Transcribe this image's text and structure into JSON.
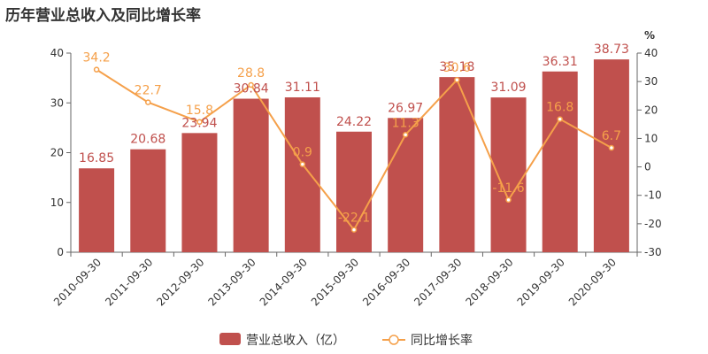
{
  "title": "历年营业总收入及同比增长率",
  "colors": {
    "bar": "#c0504d",
    "line": "#f5a04a",
    "axis": "#666666",
    "text": "#333333"
  },
  "chart_data": {
    "type": "bar",
    "categories": [
      "2010-09-30",
      "2011-09-30",
      "2012-09-30",
      "2013-09-30",
      "2014-09-30",
      "2015-09-30",
      "2016-09-30",
      "2017-09-30",
      "2018-09-30",
      "2019-09-30",
      "2020-09-30"
    ],
    "series": [
      {
        "name": "营业总收入（亿）",
        "type": "bar",
        "axis": "left",
        "values": [
          16.85,
          20.68,
          23.94,
          30.84,
          31.11,
          24.22,
          26.97,
          35.18,
          31.09,
          36.31,
          38.73
        ],
        "labels": [
          "16.85",
          "20.68",
          "23.94",
          "30.84",
          "31.11",
          "24.22",
          "26.97",
          "35.18",
          "31.09",
          "36.31",
          "38.73"
        ]
      },
      {
        "name": "同比增长率",
        "type": "line",
        "axis": "right",
        "values": [
          34.2,
          22.7,
          15.8,
          28.8,
          0.9,
          -22.1,
          11.3,
          30.6,
          -11.6,
          16.8,
          6.7
        ],
        "labels": [
          "34.2",
          "22.7",
          "15.8",
          "28.8",
          "0.9",
          "-22.1",
          "11.3",
          "30.6",
          "-11.6",
          "16.8",
          "6.7"
        ]
      }
    ],
    "left_axis": {
      "ylim": [
        0,
        40
      ],
      "ticks": [
        "0",
        "10",
        "20",
        "30",
        "40"
      ]
    },
    "right_axis": {
      "ylim": [
        -30,
        40
      ],
      "ticks": [
        "-30",
        "-20",
        "-10",
        "0",
        "10",
        "20",
        "30",
        "40"
      ],
      "unit": "%"
    },
    "legend": {
      "position": "bottom-center"
    },
    "grid": false
  }
}
